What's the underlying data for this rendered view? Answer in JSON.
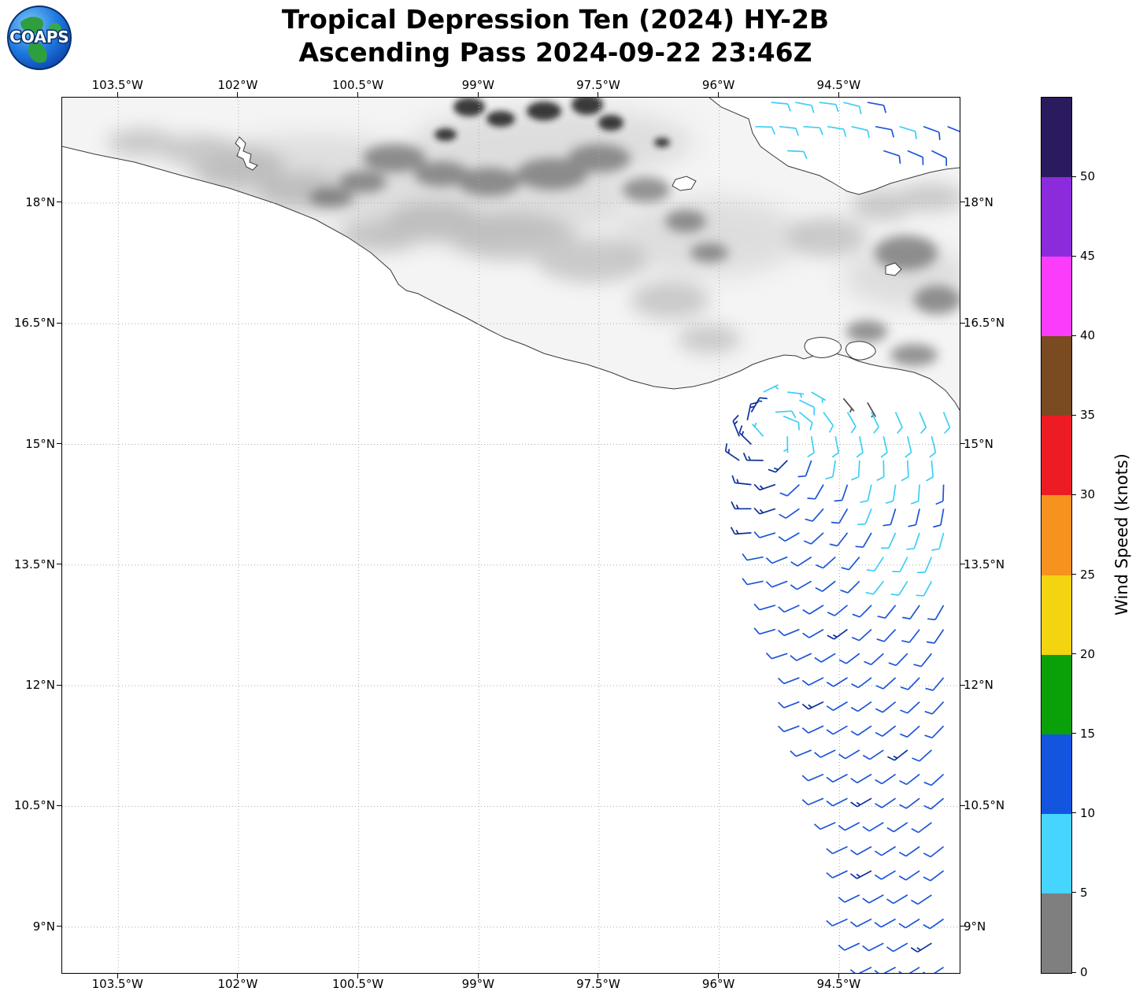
{
  "header": {
    "logo_text": "COAPS",
    "title_line1": "Tropical Depression Ten (2024) HY-2B",
    "title_line2": "Ascending Pass 2024-09-22 23:46Z"
  },
  "axes": {
    "lon_ticks": [
      {
        "label": "103.5°W",
        "value": -103.5
      },
      {
        "label": "102°W",
        "value": -102
      },
      {
        "label": "100.5°W",
        "value": -100.5
      },
      {
        "label": "99°W",
        "value": -99
      },
      {
        "label": "97.5°W",
        "value": -97.5
      },
      {
        "label": "96°W",
        "value": -96
      },
      {
        "label": "94.5°W",
        "value": -94.5
      }
    ],
    "lat_ticks": [
      {
        "label": "18°N",
        "value": 18
      },
      {
        "label": "16.5°N",
        "value": 16.5
      },
      {
        "label": "15°N",
        "value": 15
      },
      {
        "label": "13.5°N",
        "value": 13.5
      },
      {
        "label": "12°N",
        "value": 12
      },
      {
        "label": "10.5°N",
        "value": 10.5
      },
      {
        "label": "9°N",
        "value": 9
      }
    ]
  },
  "colorbar": {
    "label": "Wind Speed (knots)",
    "ticks": [
      0,
      5,
      10,
      15,
      20,
      25,
      30,
      35,
      40,
      45,
      50
    ],
    "segments_bottom_to_top": [
      {
        "range": "0-5",
        "color": "#7F7F7F"
      },
      {
        "range": "5-10",
        "color": "#45D5FF"
      },
      {
        "range": "10-15",
        "color": "#1455E0"
      },
      {
        "range": "15-20",
        "color": "#0AA00A"
      },
      {
        "range": "20-25",
        "color": "#F2D411"
      },
      {
        "range": "25-30",
        "color": "#F6921E"
      },
      {
        "range": "30-35",
        "color": "#ED1C24"
      },
      {
        "range": "35-40",
        "color": "#7A4A21"
      },
      {
        "range": "40-45",
        "color": "#FB3DFB"
      },
      {
        "range": "45-50",
        "color": "#8C2BDB"
      },
      {
        "range": "50+",
        "color": "#2B1A5E"
      }
    ]
  },
  "chart_data": {
    "type": "wind_barb_map",
    "title": "Tropical Depression Ten (2024) HY-2B",
    "subtitle": "Ascending Pass 2024-09-22 23:46Z",
    "units": "knots",
    "grid": "dotted",
    "extent": {
      "lon_min": -104.2,
      "lon_max": -93.0,
      "lat_min": 8.43,
      "lat_max": 19.31
    },
    "storm_center": {
      "lon": -95.35,
      "lat": 15.15
    },
    "barb_palette": {
      "0-5": "#4D4D4D",
      "5-10": "#3DCEF6",
      "10-12": "#1D55D8",
      "13-15": "#10309B"
    },
    "barbs_format": [
      "lon",
      "lat",
      "speed_kt",
      "wind_from_deg"
    ],
    "barbs": [
      [
        -95.45,
        15.65,
        7,
        64
      ],
      [
        -95.15,
        15.65,
        7,
        97
      ],
      [
        -94.85,
        15.65,
        7,
        120
      ],
      [
        -95.0,
        15.55,
        8,
        116
      ],
      [
        -94.45,
        15.57,
        3,
        140
      ],
      [
        -94.15,
        15.52,
        3,
        150
      ],
      [
        -95.65,
        15.3,
        13,
        12
      ],
      [
        -95.6,
        15.0,
        13,
        314
      ],
      [
        -95.2,
        15.35,
        8,
        112
      ],
      [
        -95.6,
        15.4,
        13,
        30
      ],
      [
        -95.3,
        15.4,
        8,
        86
      ],
      [
        -95.0,
        15.4,
        8,
        129
      ],
      [
        -94.7,
        15.4,
        8,
        144
      ],
      [
        -94.4,
        15.4,
        8,
        150
      ],
      [
        -94.1,
        15.4,
        8,
        154
      ],
      [
        -93.8,
        15.4,
        8,
        156
      ],
      [
        -93.5,
        15.4,
        8,
        157
      ],
      [
        -93.2,
        15.4,
        8,
        158
      ],
      [
        -95.75,
        15.1,
        13,
        338
      ],
      [
        -95.45,
        15.1,
        5,
        318
      ],
      [
        -95.15,
        15.1,
        5,
        179
      ],
      [
        -94.85,
        15.1,
        8,
        171
      ],
      [
        -94.55,
        15.1,
        8,
        169
      ],
      [
        -94.25,
        15.1,
        8,
        168
      ],
      [
        -93.95,
        15.1,
        8,
        167
      ],
      [
        -93.65,
        15.1,
        8,
        167
      ],
      [
        -93.35,
        15.1,
        8,
        166
      ],
      [
        -95.75,
        14.8,
        13,
        304
      ],
      [
        -95.45,
        14.8,
        13,
        271
      ],
      [
        -95.15,
        14.8,
        13,
        225
      ],
      [
        -94.85,
        14.8,
        12,
        200
      ],
      [
        -94.55,
        14.8,
        8,
        189
      ],
      [
        -94.25,
        14.8,
        8,
        183
      ],
      [
        -93.95,
        14.8,
        8,
        179
      ],
      [
        -93.65,
        14.8,
        8,
        177
      ],
      [
        -93.35,
        14.8,
        8,
        175
      ],
      [
        -95.6,
        14.5,
        13,
        276
      ],
      [
        -95.3,
        14.5,
        13,
        251
      ],
      [
        -95.0,
        14.5,
        12,
        227
      ],
      [
        -94.7,
        14.5,
        12,
        210
      ],
      [
        -94.4,
        14.5,
        12,
        199
      ],
      [
        -94.1,
        14.5,
        8,
        193
      ],
      [
        -93.8,
        14.5,
        8,
        188
      ],
      [
        -93.5,
        14.5,
        8,
        184
      ],
      [
        -93.2,
        14.5,
        12,
        182
      ],
      [
        -95.6,
        14.2,
        13,
        270
      ],
      [
        -95.3,
        14.2,
        13,
        252
      ],
      [
        -95.0,
        14.2,
        12,
        235
      ],
      [
        -94.7,
        14.2,
        12,
        221
      ],
      [
        -94.4,
        14.2,
        12,
        210
      ],
      [
        -94.1,
        14.2,
        8,
        202
      ],
      [
        -93.8,
        14.2,
        12,
        197
      ],
      [
        -93.5,
        14.2,
        12,
        193
      ],
      [
        -93.2,
        14.2,
        12,
        190
      ],
      [
        -95.6,
        13.9,
        13,
        266
      ],
      [
        -95.3,
        13.9,
        12,
        253
      ],
      [
        -95.0,
        13.9,
        12,
        240
      ],
      [
        -94.7,
        13.9,
        12,
        228
      ],
      [
        -94.4,
        13.9,
        12,
        218
      ],
      [
        -94.1,
        13.9,
        12,
        210
      ],
      [
        -93.8,
        13.9,
        8,
        204
      ],
      [
        -93.5,
        13.9,
        8,
        199
      ],
      [
        -93.2,
        13.9,
        8,
        195
      ],
      [
        -95.45,
        13.6,
        12,
        259
      ],
      [
        -95.15,
        13.6,
        12,
        248
      ],
      [
        -94.85,
        13.6,
        12,
        237
      ],
      [
        -94.55,
        13.6,
        12,
        228
      ],
      [
        -94.25,
        13.6,
        12,
        220
      ],
      [
        -93.95,
        13.6,
        8,
        213
      ],
      [
        -93.65,
        13.6,
        8,
        207
      ],
      [
        -93.35,
        13.6,
        8,
        203
      ],
      [
        -95.45,
        13.3,
        12,
        258
      ],
      [
        -95.15,
        13.3,
        12,
        249
      ],
      [
        -94.85,
        13.3,
        12,
        240
      ],
      [
        -94.55,
        13.3,
        12,
        232
      ],
      [
        -94.25,
        13.3,
        12,
        225
      ],
      [
        -93.95,
        13.3,
        8,
        218
      ],
      [
        -93.65,
        13.3,
        8,
        212
      ],
      [
        -93.35,
        13.3,
        8,
        208
      ],
      [
        -95.3,
        13.0,
        12,
        254
      ],
      [
        -95.0,
        13.0,
        12,
        246
      ],
      [
        -94.7,
        13.0,
        12,
        238
      ],
      [
        -94.4,
        13.0,
        12,
        231
      ],
      [
        -94.1,
        13.0,
        12,
        225
      ],
      [
        -93.8,
        13.0,
        12,
        219
      ],
      [
        -93.5,
        13.0,
        12,
        215
      ],
      [
        -93.2,
        13.0,
        12,
        210
      ],
      [
        -95.3,
        12.7,
        12,
        254
      ],
      [
        -95.0,
        12.7,
        12,
        248
      ],
      [
        -94.7,
        12.7,
        12,
        240
      ],
      [
        -94.4,
        12.7,
        13,
        234
      ],
      [
        -94.1,
        12.7,
        12,
        228
      ],
      [
        -93.8,
        12.7,
        12,
        223
      ],
      [
        -93.5,
        12.7,
        12,
        218
      ],
      [
        -93.2,
        12.7,
        12,
        214
      ],
      [
        -95.15,
        12.4,
        12,
        252
      ],
      [
        -94.85,
        12.4,
        12,
        245
      ],
      [
        -94.55,
        12.4,
        12,
        239
      ],
      [
        -94.25,
        12.4,
        12,
        233
      ],
      [
        -93.95,
        12.4,
        12,
        228
      ],
      [
        -93.65,
        12.4,
        12,
        224
      ],
      [
        -93.35,
        12.4,
        12,
        219
      ],
      [
        -95.0,
        12.1,
        12,
        249
      ],
      [
        -94.7,
        12.1,
        12,
        243
      ],
      [
        -94.4,
        12.1,
        12,
        238
      ],
      [
        -94.1,
        12.1,
        12,
        233
      ],
      [
        -93.8,
        12.1,
        12,
        228
      ],
      [
        -93.5,
        12.1,
        12,
        224
      ],
      [
        -93.2,
        12.1,
        12,
        220
      ],
      [
        -95.0,
        11.8,
        12,
        249
      ],
      [
        -94.7,
        11.8,
        13,
        244
      ],
      [
        -94.4,
        11.8,
        12,
        239
      ],
      [
        -94.1,
        11.8,
        12,
        235
      ],
      [
        -93.8,
        11.8,
        12,
        231
      ],
      [
        -93.5,
        11.8,
        12,
        227
      ],
      [
        -93.2,
        11.8,
        12,
        223
      ],
      [
        -95.0,
        11.5,
        12,
        250
      ],
      [
        -94.7,
        11.5,
        12,
        245
      ],
      [
        -94.4,
        11.5,
        12,
        240
      ],
      [
        -94.1,
        11.5,
        12,
        236
      ],
      [
        -93.8,
        11.5,
        12,
        232
      ],
      [
        -93.5,
        11.5,
        12,
        228
      ],
      [
        -93.2,
        11.5,
        12,
        224
      ],
      [
        -94.85,
        11.2,
        12,
        248
      ],
      [
        -94.55,
        11.2,
        12,
        244
      ],
      [
        -94.25,
        11.2,
        12,
        239
      ],
      [
        -93.95,
        11.2,
        12,
        236
      ],
      [
        -93.65,
        11.2,
        13,
        232
      ],
      [
        -93.35,
        11.2,
        12,
        228
      ],
      [
        -94.7,
        10.9,
        12,
        247
      ],
      [
        -94.4,
        10.9,
        12,
        242
      ],
      [
        -94.1,
        10.9,
        12,
        239
      ],
      [
        -93.8,
        10.9,
        12,
        235
      ],
      [
        -93.5,
        10.9,
        12,
        232
      ],
      [
        -93.2,
        10.9,
        12,
        228
      ],
      [
        -94.7,
        10.6,
        12,
        247
      ],
      [
        -94.4,
        10.6,
        12,
        243
      ],
      [
        -94.1,
        10.6,
        13,
        240
      ],
      [
        -93.8,
        10.6,
        12,
        236
      ],
      [
        -93.5,
        10.6,
        12,
        233
      ],
      [
        -93.2,
        10.6,
        12,
        230
      ],
      [
        -94.55,
        10.3,
        12,
        246
      ],
      [
        -94.25,
        10.3,
        12,
        242
      ],
      [
        -93.95,
        10.3,
        12,
        239
      ],
      [
        -93.65,
        10.3,
        12,
        236
      ],
      [
        -93.35,
        10.3,
        12,
        233
      ],
      [
        -94.4,
        10.0,
        12,
        245
      ],
      [
        -94.1,
        10.0,
        12,
        241
      ],
      [
        -93.8,
        10.0,
        12,
        238
      ],
      [
        -93.5,
        10.0,
        12,
        235
      ],
      [
        -93.2,
        10.0,
        12,
        232
      ],
      [
        -94.4,
        9.7,
        12,
        245
      ],
      [
        -94.1,
        9.7,
        13,
        242
      ],
      [
        -93.8,
        9.7,
        12,
        239
      ],
      [
        -93.5,
        9.7,
        12,
        236
      ],
      [
        -93.2,
        9.7,
        12,
        233
      ],
      [
        -94.25,
        9.4,
        12,
        244
      ],
      [
        -93.95,
        9.4,
        12,
        241
      ],
      [
        -93.65,
        9.4,
        12,
        239
      ],
      [
        -93.35,
        9.4,
        12,
        236
      ],
      [
        -94.4,
        9.1,
        12,
        246
      ],
      [
        -94.1,
        9.1,
        12,
        243
      ],
      [
        -93.8,
        9.1,
        12,
        241
      ],
      [
        -93.5,
        9.1,
        12,
        238
      ],
      [
        -93.2,
        9.1,
        12,
        235
      ],
      [
        -94.25,
        8.8,
        12,
        245
      ],
      [
        -93.95,
        8.8,
        12,
        243
      ],
      [
        -93.65,
        8.8,
        12,
        240
      ],
      [
        -93.35,
        8.8,
        13,
        238
      ],
      [
        -94.1,
        8.5,
        12,
        244
      ],
      [
        -93.8,
        8.5,
        12,
        242
      ],
      [
        -93.5,
        8.5,
        12,
        239
      ],
      [
        -93.2,
        8.5,
        12,
        237
      ],
      [
        -95.35,
        19.25,
        8,
        95
      ],
      [
        -95.05,
        19.25,
        8,
        100
      ],
      [
        -94.75,
        19.25,
        8,
        97
      ],
      [
        -94.45,
        19.25,
        8,
        104
      ],
      [
        -94.15,
        19.25,
        11,
        100
      ],
      [
        -95.55,
        18.95,
        8,
        92
      ],
      [
        -95.25,
        18.95,
        8,
        96
      ],
      [
        -94.95,
        18.95,
        8,
        94
      ],
      [
        -94.65,
        18.95,
        8,
        99
      ],
      [
        -94.35,
        18.95,
        8,
        103
      ],
      [
        -94.05,
        18.95,
        11,
        101
      ],
      [
        -93.75,
        18.95,
        8,
        107
      ],
      [
        -93.45,
        18.95,
        11,
        110
      ],
      [
        -93.15,
        18.95,
        12,
        112
      ],
      [
        -95.15,
        18.65,
        8,
        93
      ],
      [
        -93.95,
        18.65,
        11,
        108
      ],
      [
        -93.65,
        18.65,
        12,
        113
      ],
      [
        -93.35,
        18.65,
        12,
        116
      ]
    ]
  }
}
